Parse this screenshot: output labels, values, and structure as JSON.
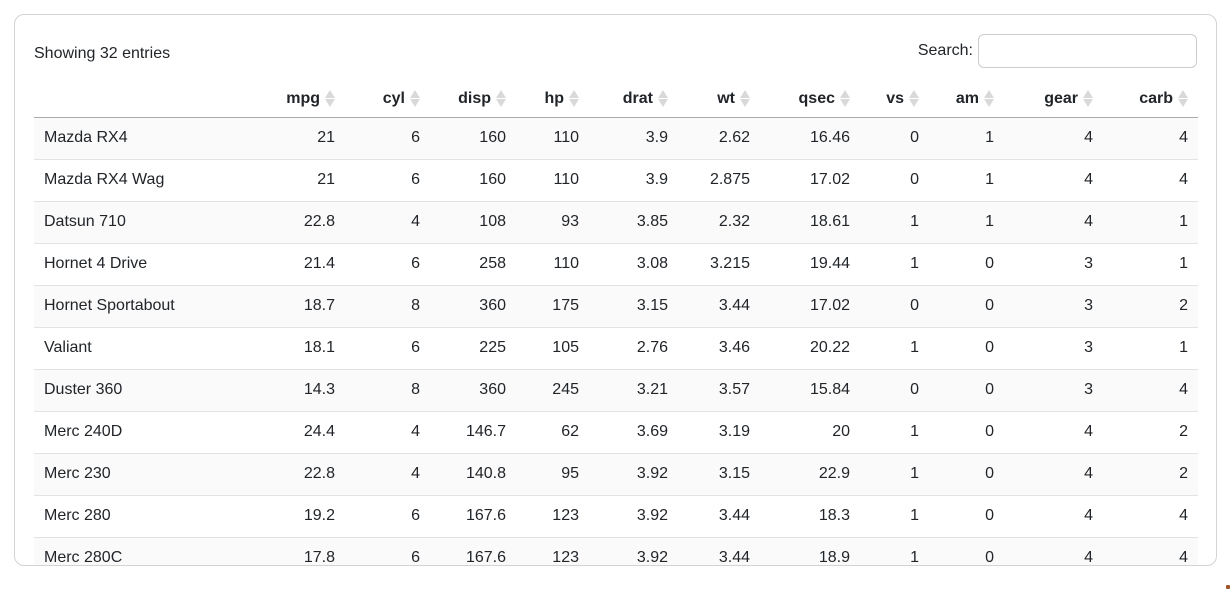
{
  "info": {
    "text": "Showing 32 entries"
  },
  "search": {
    "label": "Search:",
    "value": "",
    "placeholder": ""
  },
  "table": {
    "row_name_header": "",
    "columns": [
      {
        "label": "mpg"
      },
      {
        "label": "cyl"
      },
      {
        "label": "disp"
      },
      {
        "label": "hp"
      },
      {
        "label": "drat"
      },
      {
        "label": "wt"
      },
      {
        "label": "qsec"
      },
      {
        "label": "vs"
      },
      {
        "label": "am"
      },
      {
        "label": "gear"
      },
      {
        "label": "carb"
      }
    ],
    "rows": [
      {
        "name": "Mazda RX4",
        "values": [
          "21",
          "6",
          "160",
          "110",
          "3.9",
          "2.62",
          "16.46",
          "0",
          "1",
          "4",
          "4"
        ]
      },
      {
        "name": "Mazda RX4 Wag",
        "values": [
          "21",
          "6",
          "160",
          "110",
          "3.9",
          "2.875",
          "17.02",
          "0",
          "1",
          "4",
          "4"
        ]
      },
      {
        "name": "Datsun 710",
        "values": [
          "22.8",
          "4",
          "108",
          "93",
          "3.85",
          "2.32",
          "18.61",
          "1",
          "1",
          "4",
          "1"
        ]
      },
      {
        "name": "Hornet 4 Drive",
        "values": [
          "21.4",
          "6",
          "258",
          "110",
          "3.08",
          "3.215",
          "19.44",
          "1",
          "0",
          "3",
          "1"
        ]
      },
      {
        "name": "Hornet Sportabout",
        "values": [
          "18.7",
          "8",
          "360",
          "175",
          "3.15",
          "3.44",
          "17.02",
          "0",
          "0",
          "3",
          "2"
        ]
      },
      {
        "name": "Valiant",
        "values": [
          "18.1",
          "6",
          "225",
          "105",
          "2.76",
          "3.46",
          "20.22",
          "1",
          "0",
          "3",
          "1"
        ]
      },
      {
        "name": "Duster 360",
        "values": [
          "14.3",
          "8",
          "360",
          "245",
          "3.21",
          "3.57",
          "15.84",
          "0",
          "0",
          "3",
          "4"
        ]
      },
      {
        "name": "Merc 240D",
        "values": [
          "24.4",
          "4",
          "146.7",
          "62",
          "3.69",
          "3.19",
          "20",
          "1",
          "0",
          "4",
          "2"
        ]
      },
      {
        "name": "Merc 230",
        "values": [
          "22.8",
          "4",
          "140.8",
          "95",
          "3.92",
          "3.15",
          "22.9",
          "1",
          "0",
          "4",
          "2"
        ]
      },
      {
        "name": "Merc 280",
        "values": [
          "19.2",
          "6",
          "167.6",
          "123",
          "3.92",
          "3.44",
          "18.3",
          "1",
          "0",
          "4",
          "4"
        ]
      },
      {
        "name": "Merc 280C",
        "values": [
          "17.8",
          "6",
          "167.6",
          "123",
          "3.92",
          "3.44",
          "18.9",
          "1",
          "0",
          "4",
          "4"
        ]
      }
    ]
  },
  "colors": {
    "text": "#212529",
    "card_border": "#d3d3d3",
    "header_rule": "#ababab",
    "row_rule": "#e3e3e3",
    "stripe": "#fafafa",
    "sort_icon": "#d9d9d9",
    "input_border": "#cccccc"
  }
}
